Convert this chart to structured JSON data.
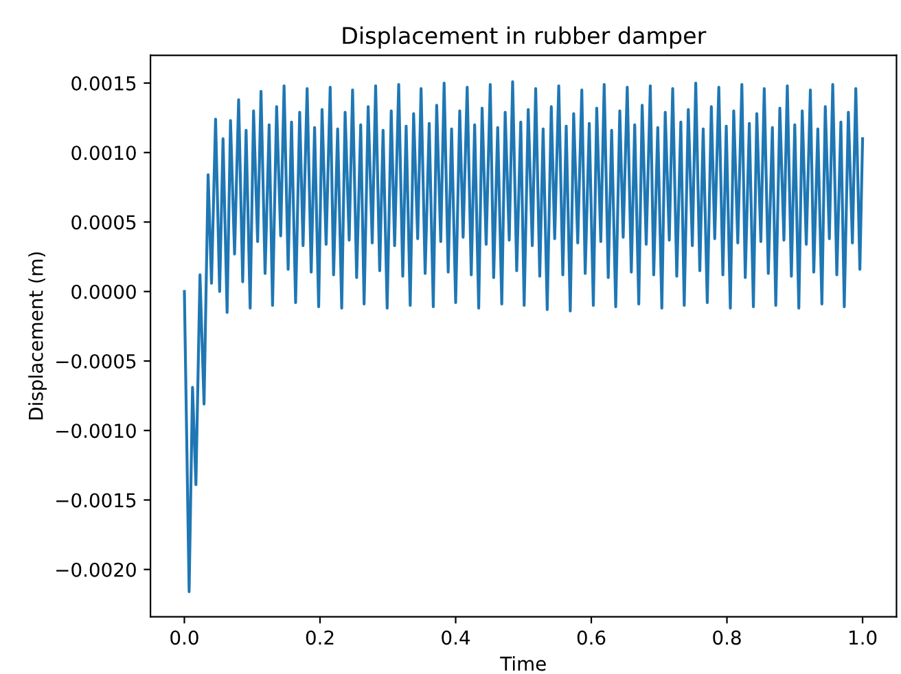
{
  "chart_data": {
    "type": "line",
    "title": "Displacement in rubber damper",
    "xlabel": "Time",
    "ylabel": "Displacement (m)",
    "x": [
      0,
      0.007,
      0.012,
      0.017,
      0.023,
      0.029,
      0.035,
      0.04,
      0.046,
      0.052,
      0.057,
      0.063,
      0.068,
      0.074,
      0.08,
      0.086,
      0.091,
      0.097,
      0.102,
      0.108,
      0.113,
      0.119,
      0.125,
      0.13,
      0.136,
      0.142,
      0.147,
      0.153,
      0.158,
      0.164,
      0.17,
      0.175,
      0.181,
      0.187,
      0.192,
      0.198,
      0.203,
      0.209,
      0.215,
      0.22,
      0.226,
      0.232,
      0.237,
      0.243,
      0.248,
      0.254,
      0.26,
      0.265,
      0.271,
      0.277,
      0.282,
      0.288,
      0.293,
      0.299,
      0.305,
      0.31,
      0.316,
      0.322,
      0.327,
      0.333,
      0.338,
      0.344,
      0.349,
      0.355,
      0.361,
      0.367,
      0.372,
      0.378,
      0.383,
      0.389,
      0.394,
      0.4,
      0.406,
      0.411,
      0.417,
      0.423,
      0.428,
      0.434,
      0.439,
      0.445,
      0.451,
      0.456,
      0.462,
      0.468,
      0.473,
      0.479,
      0.484,
      0.49,
      0.496,
      0.501,
      0.507,
      0.513,
      0.518,
      0.524,
      0.529,
      0.535,
      0.541,
      0.546,
      0.552,
      0.558,
      0.563,
      0.569,
      0.574,
      0.58,
      0.586,
      0.591,
      0.597,
      0.603,
      0.608,
      0.614,
      0.619,
      0.625,
      0.63,
      0.636,
      0.642,
      0.647,
      0.653,
      0.659,
      0.664,
      0.67,
      0.675,
      0.681,
      0.687,
      0.692,
      0.698,
      0.704,
      0.709,
      0.715,
      0.72,
      0.726,
      0.732,
      0.737,
      0.743,
      0.749,
      0.754,
      0.76,
      0.765,
      0.771,
      0.777,
      0.782,
      0.788,
      0.794,
      0.799,
      0.805,
      0.81,
      0.816,
      0.822,
      0.827,
      0.833,
      0.839,
      0.844,
      0.85,
      0.855,
      0.861,
      0.867,
      0.872,
      0.878,
      0.884,
      0.889,
      0.895,
      0.9,
      0.906,
      0.911,
      0.917,
      0.923,
      0.928,
      0.934,
      0.94,
      0.945,
      0.951,
      0.956,
      0.962,
      0.968,
      0.973,
      0.979,
      0.985,
      0.99,
      0.996,
      1.0
    ],
    "series": [
      {
        "color": "#1f77b4",
        "values": [
          0,
          -0.00216,
          -0.00069,
          -0.00139,
          0.00012,
          -0.00081,
          0.00084,
          6e-05,
          0.00124,
          0.0,
          0.0011,
          -0.00015,
          0.00123,
          0.00027,
          0.00138,
          7e-05,
          0.00116,
          -0.00012,
          0.0013,
          0.00036,
          0.00144,
          0.00013,
          0.0012,
          -0.0001,
          0.00133,
          0.0004,
          0.00148,
          0.00016,
          0.00122,
          -8e-05,
          0.00129,
          0.00033,
          0.00146,
          0.00014,
          0.00118,
          -0.00011,
          0.00131,
          0.00034,
          0.00147,
          0.00012,
          0.00117,
          -0.00012,
          0.00129,
          0.00037,
          0.00145,
          0.0001,
          0.0012,
          -9e-05,
          0.00133,
          0.00035,
          0.00148,
          0.00015,
          0.00116,
          -0.00012,
          0.0013,
          0.00033,
          0.00149,
          0.00011,
          0.00119,
          -0.0001,
          0.00128,
          0.00038,
          0.00146,
          0.00013,
          0.00121,
          -0.00011,
          0.00134,
          0.00036,
          0.0015,
          0.00014,
          0.00117,
          -8e-05,
          0.0013,
          0.00039,
          0.00147,
          0.00012,
          0.0012,
          -0.00012,
          0.00132,
          0.00034,
          0.00149,
          0.0001,
          0.00118,
          -9e-05,
          0.00129,
          0.00037,
          0.00151,
          0.00015,
          0.00122,
          -0.0001,
          0.00131,
          0.00033,
          0.00146,
          0.00011,
          0.00117,
          -0.00013,
          0.00133,
          0.00038,
          0.00148,
          0.00012,
          0.00119,
          -0.00014,
          0.00128,
          0.00035,
          0.00145,
          0.00013,
          0.00121,
          -0.0001,
          0.00132,
          0.00036,
          0.00149,
          0.0001,
          0.00116,
          -0.00011,
          0.0013,
          0.00039,
          0.00147,
          0.00014,
          0.0012,
          -9e-05,
          0.00134,
          0.00034,
          0.00148,
          0.00012,
          0.00118,
          -0.00012,
          0.00129,
          0.00037,
          0.00146,
          0.00011,
          0.00122,
          -0.0001,
          0.00131,
          0.00033,
          0.0015,
          0.00015,
          0.00117,
          -8e-05,
          0.00133,
          0.00038,
          0.00147,
          0.00012,
          0.00119,
          -0.00012,
          0.0013,
          0.00035,
          0.00149,
          0.0001,
          0.00121,
          -0.00011,
          0.00128,
          0.00036,
          0.00146,
          0.00013,
          0.00118,
          -0.0001,
          0.00132,
          0.00037,
          0.00148,
          0.00011,
          0.0012,
          -0.00012,
          0.0013,
          0.00034,
          0.00145,
          0.00014,
          0.00117,
          -9e-05,
          0.00133,
          0.00038,
          0.00149,
          0.00012,
          0.00122,
          -0.00011,
          0.00129,
          0.00035,
          0.00146,
          0.00016,
          0.0011
        ]
      }
    ],
    "xlim": [
      -0.05,
      1.05
    ],
    "ylim": [
      -0.00234,
      0.0017
    ],
    "xticks": [
      {
        "value": 0,
        "label": "0.0"
      },
      {
        "value": 0.2,
        "label": "0.2"
      },
      {
        "value": 0.4,
        "label": "0.4"
      },
      {
        "value": 0.6,
        "label": "0.6"
      },
      {
        "value": 0.8,
        "label": "0.8"
      },
      {
        "value": 1.0,
        "label": "1.0"
      }
    ],
    "yticks": [
      {
        "value": -0.002,
        "label": "−0.0020"
      },
      {
        "value": -0.0015,
        "label": "−0.0015"
      },
      {
        "value": -0.001,
        "label": "−0.0010"
      },
      {
        "value": -0.0005,
        "label": "−0.0005"
      },
      {
        "value": 0,
        "label": "0.0000"
      },
      {
        "value": 0.0005,
        "label": "0.0005"
      },
      {
        "value": 0.001,
        "label": "0.0010"
      },
      {
        "value": 0.0015,
        "label": "0.0015"
      }
    ]
  }
}
